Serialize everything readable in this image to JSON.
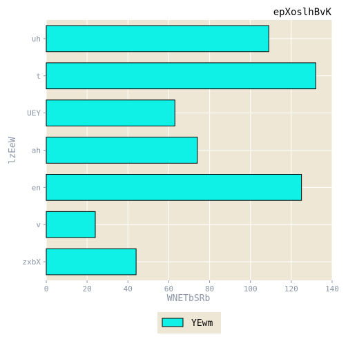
{
  "chart_data": {
    "type": "bar",
    "orientation": "horizontal",
    "title": "epXoslhBvK",
    "xlabel": "WNETbSRb",
    "ylabel": "lzEeW",
    "categories": [
      "uh",
      "t",
      "UEY",
      "ah",
      "en",
      "v",
      "zxbX"
    ],
    "series": [
      {
        "name": "YEwm",
        "values": [
          109,
          132,
          63,
          74,
          125,
          24,
          44
        ]
      }
    ],
    "xlim": [
      0,
      140
    ],
    "xticks": [
      "0",
      "20",
      "40",
      "60",
      "80",
      "100",
      "120",
      "140"
    ],
    "grid": true,
    "legend_position": "bottom-center",
    "colors": {
      "bar_fill": "#0ff0e6",
      "bar_edge": "#000000",
      "plot_background": "#efe7d5",
      "grid": "#ffffff",
      "axis_text": "#8c96a6",
      "title_text": "#000000"
    }
  }
}
